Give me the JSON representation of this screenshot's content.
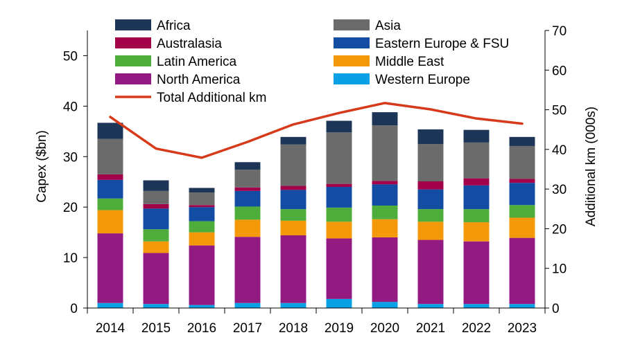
{
  "chart_data": {
    "type": "bar",
    "stacked": true,
    "categories": [
      "2014",
      "2015",
      "2016",
      "2017",
      "2018",
      "2019",
      "2020",
      "2021",
      "2022",
      "2023"
    ],
    "series": [
      {
        "name": "Western Europe",
        "color": "#0aa0e6",
        "values": [
          1.0,
          0.8,
          0.6,
          1.0,
          1.0,
          1.8,
          1.2,
          0.8,
          0.8,
          0.8
        ]
      },
      {
        "name": "North America",
        "color": "#921a80",
        "values": [
          13.8,
          10.1,
          11.8,
          13.1,
          13.4,
          12.0,
          12.8,
          12.7,
          12.4,
          13.1
        ]
      },
      {
        "name": "Middle East",
        "color": "#f49a0a",
        "values": [
          4.6,
          2.3,
          2.6,
          3.4,
          2.9,
          3.3,
          3.6,
          3.6,
          3.8,
          4.0
        ]
      },
      {
        "name": "Latin America",
        "color": "#4fae3b",
        "values": [
          2.3,
          2.4,
          2.2,
          2.6,
          2.3,
          2.8,
          2.7,
          2.5,
          2.6,
          2.5
        ]
      },
      {
        "name": "Eastern Europe & FSU",
        "color": "#134da3",
        "values": [
          3.7,
          4.1,
          2.8,
          3.1,
          3.8,
          4.1,
          4.2,
          3.9,
          4.7,
          4.4
        ]
      },
      {
        "name": "Australasia",
        "color": "#a3004a",
        "values": [
          1.1,
          0.9,
          0.4,
          0.7,
          0.8,
          0.6,
          0.7,
          1.6,
          1.4,
          0.8
        ]
      },
      {
        "name": "Asia",
        "color": "#6b6b6b",
        "values": [
          7.0,
          2.6,
          2.5,
          3.5,
          8.2,
          10.2,
          11.0,
          7.4,
          7.1,
          6.5
        ]
      },
      {
        "name": "Africa",
        "color": "#1d3557",
        "values": [
          3.2,
          2.1,
          0.9,
          1.5,
          1.5,
          2.3,
          2.6,
          2.9,
          2.5,
          1.8
        ]
      }
    ],
    "line_series": {
      "name": "Total Additional km",
      "color": "#d63a1a",
      "axis": "right",
      "values": [
        48.2,
        40.2,
        37.9,
        41.9,
        46.3,
        49.2,
        51.7,
        50.1,
        47.8,
        46.5
      ]
    },
    "legend": {
      "placement": "top",
      "items": [
        {
          "name": "Africa",
          "color": "#1d3557"
        },
        {
          "name": "Asia",
          "color": "#6b6b6b"
        },
        {
          "name": "Australasia",
          "color": "#a3004a"
        },
        {
          "name": "Eastern Europe & FSU",
          "color": "#134da3"
        },
        {
          "name": "Latin America",
          "color": "#4fae3b"
        },
        {
          "name": "Middle East",
          "color": "#f49a0a"
        },
        {
          "name": "North America",
          "color": "#921a80"
        },
        {
          "name": "Western Europe",
          "color": "#0aa0e6"
        },
        {
          "name": "Total Additional km",
          "color": "#d63a1a",
          "kind": "line"
        }
      ]
    },
    "y_left": {
      "label": "Capex ($bn)",
      "range": [
        0,
        55
      ],
      "ticks": [
        0,
        10,
        20,
        30,
        40,
        50
      ]
    },
    "y_right": {
      "label": "Additional km (000s)",
      "range": [
        0,
        70
      ],
      "ticks": [
        0,
        10,
        20,
        30,
        40,
        50,
        60,
        70
      ]
    },
    "grid": false
  }
}
